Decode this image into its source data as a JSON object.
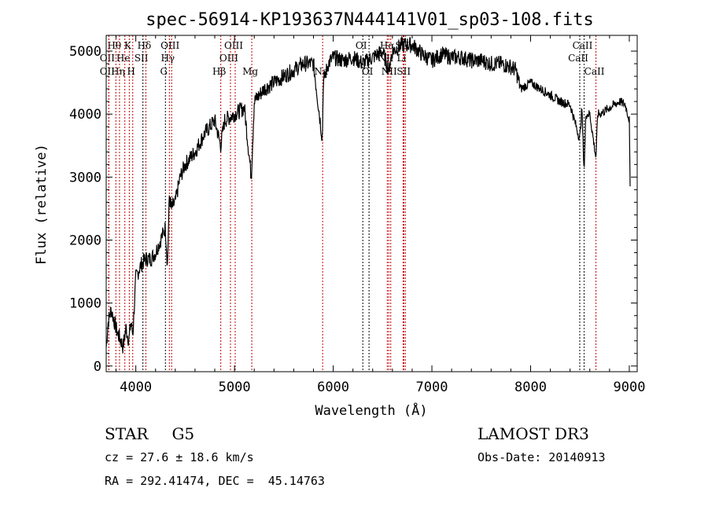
{
  "chart_data": {
    "type": "line",
    "title": "spec-56914-KP193637N444141V01_sp03-108.fits",
    "xlabel": "Wavelength (Å)",
    "ylabel": "Flux (relative)",
    "xlim": [
      3700,
      9080
    ],
    "ylim": [
      -90,
      5250
    ],
    "xticks": [
      "4000",
      "5000",
      "6000",
      "7000",
      "8000",
      "9000"
    ],
    "xtick_values": [
      4000,
      5000,
      6000,
      7000,
      8000,
      9000
    ],
    "yticks": [
      "0",
      "1000",
      "2000",
      "3000",
      "4000",
      "5000"
    ],
    "ytick_values": [
      0,
      1000,
      2000,
      3000,
      4000,
      5000
    ],
    "spectrum": {
      "x": [
        3700,
        3720,
        3750,
        3800,
        3820,
        3850,
        3870,
        3900,
        3930,
        3950,
        3970,
        4000,
        4050,
        4100,
        4150,
        4200,
        4250,
        4300,
        4320,
        4340,
        4360,
        4400,
        4450,
        4500,
        4600,
        4700,
        4800,
        4860,
        4900,
        5000,
        5100,
        5170,
        5200,
        5300,
        5400,
        5500,
        5600,
        5700,
        5800,
        5890,
        5900,
        5950,
        6000,
        6100,
        6200,
        6300,
        6400,
        6500,
        6563,
        6600,
        6700,
        6800,
        6900,
        7000,
        7100,
        7200,
        7300,
        7400,
        7500,
        7600,
        7700,
        7800,
        7850,
        7900,
        8000,
        8100,
        8200,
        8300,
        8400,
        8498,
        8520,
        8542,
        8560,
        8600,
        8662,
        8680,
        8700,
        8800,
        8900,
        8960,
        9000,
        9010
      ],
      "flux": [
        300,
        700,
        900,
        600,
        500,
        400,
        300,
        600,
        400,
        700,
        500,
        1400,
        1600,
        1700,
        1700,
        1800,
        2000,
        2200,
        1600,
        2700,
        2500,
        2600,
        3000,
        3200,
        3400,
        3700,
        3900,
        3500,
        3900,
        4000,
        4100,
        3000,
        4200,
        4400,
        4500,
        4600,
        4700,
        4800,
        4800,
        3600,
        4500,
        4800,
        4900,
        4850,
        4900,
        4800,
        4900,
        5000,
        4700,
        5000,
        5100,
        5100,
        4950,
        4850,
        4950,
        4900,
        4900,
        4850,
        4850,
        4800,
        4800,
        4750,
        4700,
        4400,
        4500,
        4400,
        4300,
        4200,
        4150,
        3600,
        4100,
        3100,
        4000,
        4000,
        3300,
        4000,
        4000,
        4100,
        4200,
        4150,
        3900,
        2500
      ]
    },
    "lines": [
      {
        "name": "OII",
        "wl": 3727,
        "row": 2,
        "color": "#c00000"
      },
      {
        "name": "Hθ",
        "wl": 3798,
        "row": 1,
        "color": "#c00000"
      },
      {
        "name": "OII",
        "wl": 3727,
        "row": 3,
        "color": "#c00000"
      },
      {
        "name": "Hη",
        "wl": 3835,
        "row": 3,
        "color": "#c00000"
      },
      {
        "name": "He",
        "wl": 3889,
        "row": 2,
        "color": "#c00000"
      },
      {
        "name": "K",
        "wl": 3934,
        "row": 1,
        "color": "#c00000"
      },
      {
        "name": "H",
        "wl": 3969,
        "row": 3,
        "color": "#c00000"
      },
      {
        "name": "SII",
        "wl": 4072,
        "row": 2,
        "color": "#000000"
      },
      {
        "name": "Hδ",
        "wl": 4102,
        "row": 1,
        "color": "#c00000"
      },
      {
        "name": "G",
        "wl": 4300,
        "row": 3,
        "color": "#000000"
      },
      {
        "name": "Hγ",
        "wl": 4340,
        "row": 2,
        "color": "#c00000"
      },
      {
        "name": "OIII",
        "wl": 4363,
        "row": 1,
        "color": "#c00000"
      },
      {
        "name": "Hβ",
        "wl": 4861,
        "row": 3,
        "color": "#c00000"
      },
      {
        "name": "OIII",
        "wl": 4959,
        "row": 2,
        "color": "#c00000"
      },
      {
        "name": "OIII",
        "wl": 5007,
        "row": 1,
        "color": "#c00000"
      },
      {
        "name": "Mg",
        "wl": 5175,
        "row": 3,
        "color": "#c00000"
      },
      {
        "name": "Na",
        "wl": 5893,
        "row": 3,
        "color": "#c00000"
      },
      {
        "name": "OI",
        "wl": 6300,
        "row": 1,
        "color": "#000000"
      },
      {
        "name": "OI",
        "wl": 6363,
        "row": 3,
        "color": "#000000"
      },
      {
        "name": "NII",
        "wl": 6548,
        "row": 2,
        "color": "#c00000"
      },
      {
        "name": "Hα",
        "wl": 6563,
        "row": 1,
        "color": "#c00000"
      },
      {
        "name": "NII",
        "wl": 6583,
        "row": 3,
        "color": "#c00000"
      },
      {
        "name": "Li",
        "wl": 6708,
        "row": 2,
        "color": "#c00000"
      },
      {
        "name": "SII",
        "wl": 6716,
        "row": 1,
        "color": "#c00000"
      },
      {
        "name": "SII",
        "wl": 6731,
        "row": 3,
        "color": "#c00000"
      },
      {
        "name": "CaII",
        "wl": 8498,
        "row": 2,
        "color": "#000000"
      },
      {
        "name": "CaII",
        "wl": 8542,
        "row": 1,
        "color": "#000000"
      },
      {
        "name": "CaII",
        "wl": 8662,
        "row": 3,
        "color": "#c00000"
      }
    ]
  },
  "info": {
    "class": "STAR",
    "subclass": "G5",
    "cz": "cz = 27.6 ± 18.6 km/s",
    "radec": "RA = 292.41474, DEC =  45.14763",
    "survey": "LAMOST DR3",
    "obsdate": "Obs-Date: 20140913"
  }
}
